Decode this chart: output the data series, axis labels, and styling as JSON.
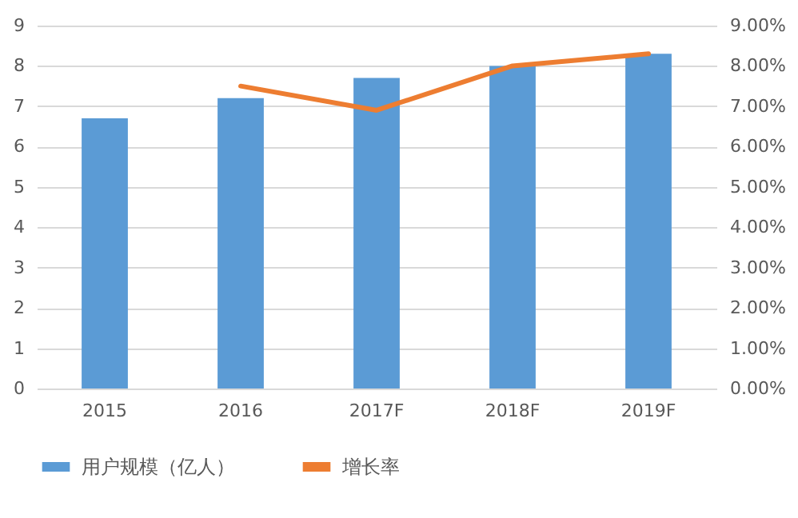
{
  "chart_data": {
    "type": "bar",
    "categories": [
      "2015",
      "2016",
      "2017F",
      "2018F",
      "2019F"
    ],
    "series": [
      {
        "name": "用户规模（亿人）",
        "color": "#5b9bd5",
        "values": [
          6.7,
          7.2,
          7.7,
          8.0,
          8.3
        ]
      },
      {
        "name": "增长率",
        "type": "line",
        "axis": "y2",
        "color": "#ed7d31",
        "values": [
          null,
          7.5,
          6.9,
          8.0,
          8.3
        ]
      }
    ],
    "ylim": [
      0,
      9
    ],
    "yticks": [
      0,
      1,
      2,
      3,
      4,
      5,
      6,
      7,
      8,
      9
    ],
    "y2lim": [
      0,
      9
    ],
    "y2ticks": [
      {
        "value": 0,
        "label": "0.00%"
      },
      {
        "value": 1,
        "label": "1.00%"
      },
      {
        "value": 2,
        "label": "2.00%"
      },
      {
        "value": 3,
        "label": "3.00%"
      },
      {
        "value": 4,
        "label": "4.00%"
      },
      {
        "value": 5,
        "label": "5.00%"
      },
      {
        "value": 6,
        "label": "6.00%"
      },
      {
        "value": 7,
        "label": "7.00%"
      },
      {
        "value": 8,
        "label": "8.00%"
      },
      {
        "value": 9,
        "label": "9.00%"
      }
    ],
    "grid": "y",
    "legend": "bottom"
  }
}
